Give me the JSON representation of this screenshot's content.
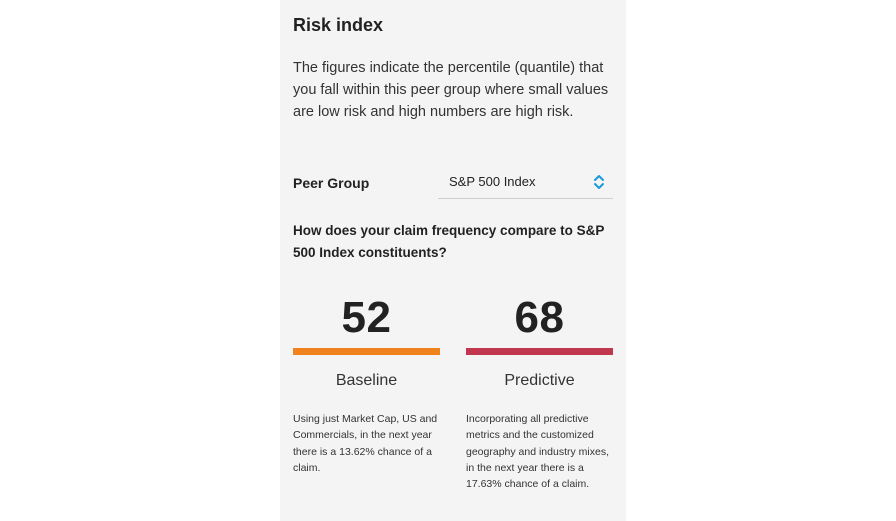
{
  "panel": {
    "title": "Risk index",
    "description": "The figures indicate the percentile (quantile) that you fall within this peer group where small values are low risk and high numbers are high risk."
  },
  "peer_group": {
    "label": "Peer Group",
    "selected": "S&P 500 Index",
    "icon": "up-down-chevron-icon",
    "icon_color": "#1a9ad6"
  },
  "question": "How does your claim frequency compare to S&P 500 Index constituents?",
  "metrics": [
    {
      "value": "52",
      "label": "Baseline",
      "bar_color": "#f0821e",
      "bar_fraction": 1.0,
      "note": "Using just Market Cap, US and Commercials, in the next year there is a 13.62% chance of a claim."
    },
    {
      "value": "68",
      "label": "Predictive",
      "bar_color": "#c0374f",
      "bar_fraction": 1.0,
      "note": "Incorporating all predictive metrics and the customized geography and industry mixes, in the next year there is a 17.63% chance of a claim."
    }
  ]
}
